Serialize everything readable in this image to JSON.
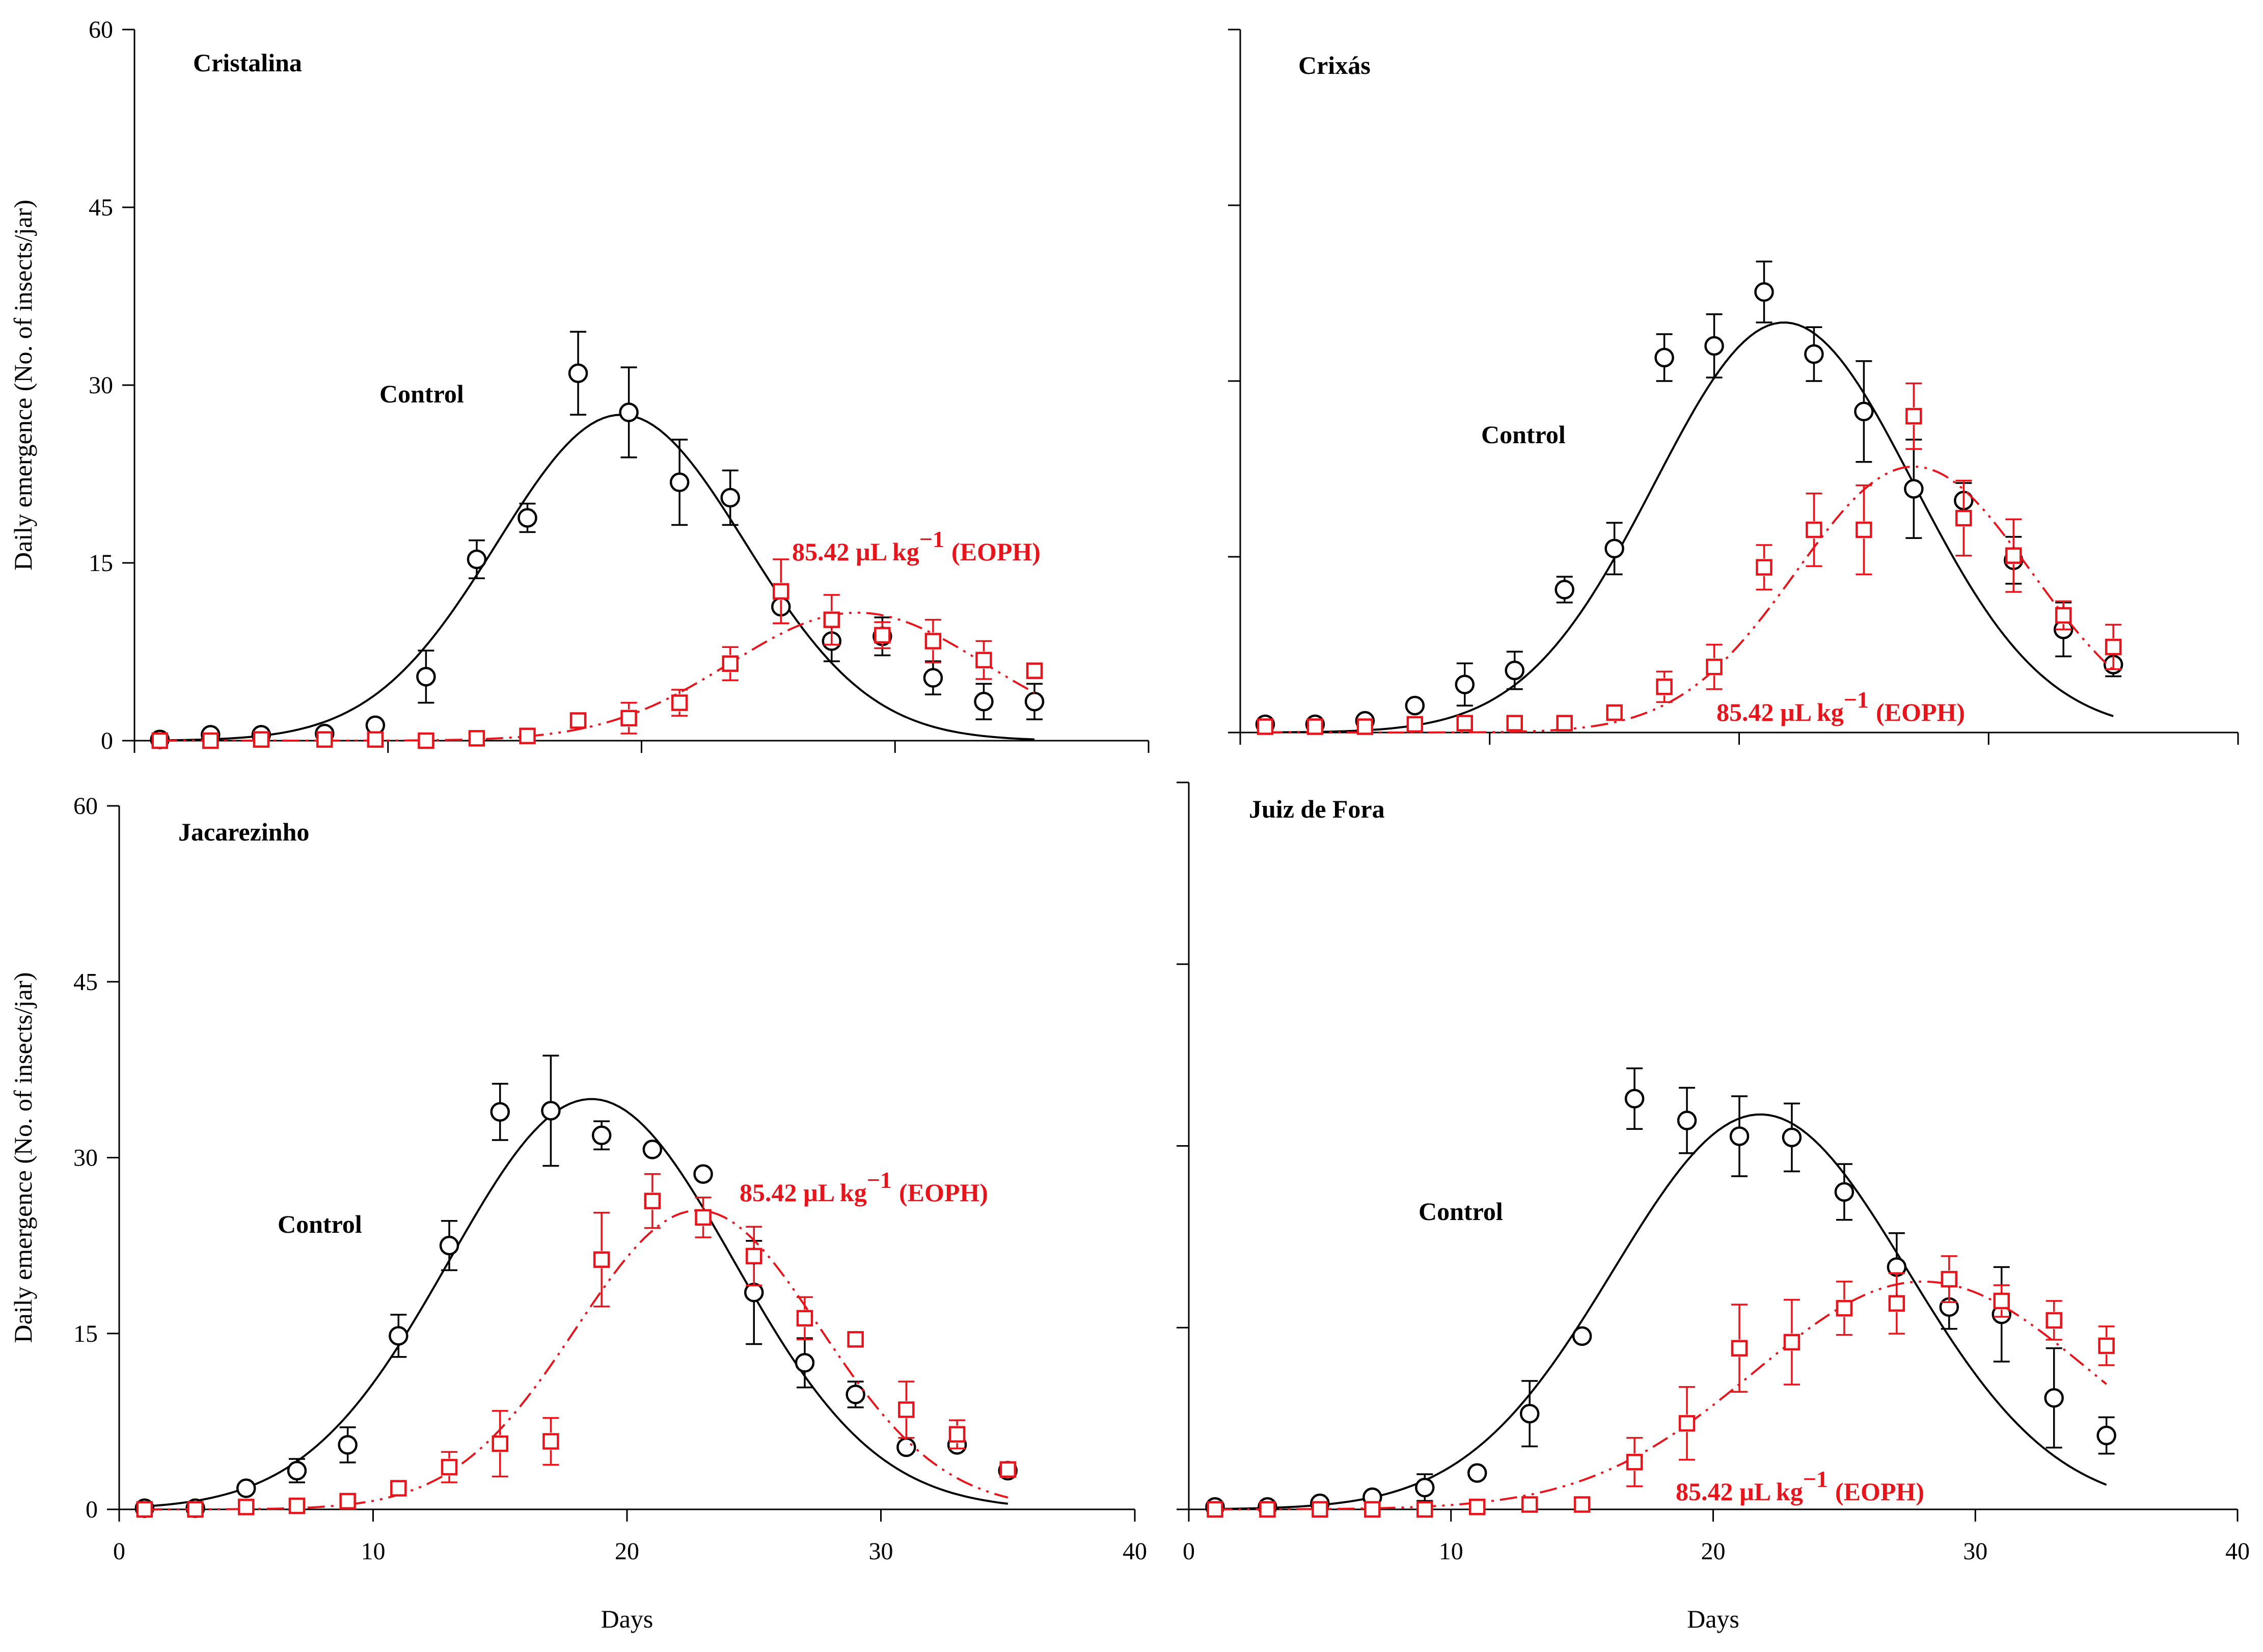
{
  "figure": {
    "xlabel": "Days",
    "ylabel": "Daily emergence (No. of insects/jar)",
    "colors": {
      "control": "#000000",
      "treated": "#e8141c"
    }
  },
  "chart_data": [
    {
      "type": "scatter",
      "title": "Cristalina",
      "xlim": [
        0,
        40
      ],
      "ylim": [
        0,
        60
      ],
      "xticks": [
        0,
        10,
        20,
        30,
        40
      ],
      "yticks": [
        0,
        15,
        30,
        45,
        60
      ],
      "series": [
        {
          "name": "Control",
          "label": "Control",
          "marker": "circle",
          "line": "solid",
          "x": [
            1.0,
            3.0,
            5.0,
            7.5,
            9.5,
            11.5,
            13.5,
            15.5,
            17.5,
            19.5,
            21.5,
            23.5,
            25.5,
            27.5,
            29.5,
            31.5,
            33.5,
            35.5
          ],
          "y": [
            0.1,
            0.5,
            0.5,
            0.6,
            1.3,
            5.4,
            15.3,
            18.8,
            31.0,
            27.7,
            21.8,
            20.5,
            11.3,
            8.4,
            8.8,
            5.3,
            3.3,
            3.3
          ],
          "err": [
            0.1,
            0.3,
            0.3,
            0.3,
            0.4,
            2.2,
            1.6,
            1.2,
            3.5,
            3.8,
            3.6,
            2.3,
            1.4,
            1.7,
            1.6,
            1.4,
            1.5,
            1.5
          ],
          "fit": {
            "a": 27.5,
            "mu": 19.2,
            "sigma": 4.9,
            "x0": 1.0,
            "x1": 35.5
          }
        },
        {
          "name": "EOPH",
          "label": "85.42 µL kg",
          "sup": "−1",
          "suffix": "(EOPH)",
          "marker": "square",
          "line": "dashdot",
          "x": [
            1.0,
            3.0,
            5.0,
            7.5,
            9.5,
            11.5,
            13.5,
            15.5,
            17.5,
            19.5,
            21.5,
            23.5,
            25.5,
            27.5,
            29.5,
            31.5,
            33.5,
            35.5
          ],
          "y": [
            0.0,
            0.0,
            0.1,
            0.1,
            0.1,
            0.0,
            0.2,
            0.4,
            1.7,
            1.9,
            3.2,
            6.5,
            12.6,
            10.2,
            8.9,
            8.4,
            6.8,
            5.9
          ],
          "err": [
            0.1,
            0.1,
            0.1,
            0.1,
            0.1,
            0.1,
            0.2,
            0.3,
            0.6,
            1.3,
            1.1,
            1.4,
            2.7,
            2.1,
            1.1,
            1.8,
            1.6,
            0.6
          ],
          "fit": {
            "a": 10.8,
            "mu": 28.5,
            "sigma": 5.0,
            "x0": 1.0,
            "x1": 35.5
          }
        }
      ]
    },
    {
      "type": "scatter",
      "title": "Crixás",
      "xlim": [
        0,
        40
      ],
      "ylim": [
        0,
        60
      ],
      "xticks": [
        0,
        10,
        20,
        30,
        40
      ],
      "yticks": [
        0,
        15,
        30,
        45,
        60
      ],
      "series": [
        {
          "name": "Control",
          "label": "Control",
          "marker": "circle",
          "line": "solid",
          "x": [
            1.0,
            3.0,
            5.0,
            7.0,
            9.0,
            11.0,
            13.0,
            15.0,
            17.0,
            19.0,
            21.0,
            23.0,
            25.0,
            27.0,
            29.0,
            31.0,
            33.0,
            35.0
          ],
          "y": [
            0.7,
            0.7,
            1.0,
            2.3,
            4.1,
            5.3,
            12.2,
            15.7,
            32.0,
            33.0,
            37.6,
            32.3,
            27.4,
            20.8,
            19.8,
            14.7,
            8.8,
            5.8
          ],
          "err": [
            0.3,
            0.3,
            0.4,
            0.8,
            1.8,
            1.6,
            1.1,
            2.2,
            2.0,
            2.7,
            2.6,
            2.3,
            4.3,
            4.2,
            1.5,
            2.0,
            2.3,
            1.0
          ],
          "fit": {
            "a": 35.0,
            "mu": 21.8,
            "sigma": 5.2,
            "x0": 1.0,
            "x1": 35.0
          }
        },
        {
          "name": "EOPH",
          "label": "85.42 µL kg",
          "sup": "−1",
          "suffix": "(EOPH)",
          "marker": "square",
          "line": "dashdot",
          "x": [
            1.0,
            3.0,
            5.0,
            7.0,
            9.0,
            11.0,
            13.0,
            15.0,
            17.0,
            19.0,
            21.0,
            23.0,
            25.0,
            27.0,
            29.0,
            31.0,
            33.0,
            35.0
          ],
          "y": [
            0.5,
            0.5,
            0.5,
            0.7,
            0.8,
            0.8,
            0.8,
            1.7,
            3.9,
            5.6,
            14.1,
            17.3,
            17.3,
            27.0,
            18.3,
            15.1,
            10.0,
            7.3
          ],
          "err": [
            0.2,
            0.2,
            0.2,
            0.3,
            0.3,
            0.3,
            0.3,
            0.7,
            1.3,
            1.9,
            1.9,
            3.1,
            3.8,
            2.8,
            3.2,
            3.1,
            1.2,
            1.9
          ],
          "fit": {
            "a": 22.7,
            "mu": 27.0,
            "sigma": 4.7,
            "x0": 1.0,
            "x1": 35.0
          }
        }
      ]
    },
    {
      "type": "scatter",
      "title": "Jacarezinho",
      "xlim": [
        0,
        40
      ],
      "ylim": [
        0,
        60
      ],
      "xticks": [
        0,
        10,
        20,
        30,
        40
      ],
      "yticks": [
        0,
        15,
        30,
        45,
        60
      ],
      "series": [
        {
          "name": "Control",
          "label": "Control",
          "marker": "circle",
          "line": "solid",
          "x": [
            1,
            3,
            5,
            7,
            9,
            11,
            13,
            15,
            17,
            19,
            21,
            23,
            25,
            27,
            29,
            31,
            33,
            35
          ],
          "y": [
            0.1,
            0.1,
            1.8,
            3.3,
            5.5,
            14.8,
            22.5,
            33.9,
            34.0,
            31.9,
            30.7,
            28.6,
            18.5,
            12.5,
            9.8,
            5.3,
            5.5,
            3.3
          ],
          "err": [
            0.1,
            0.1,
            0.3,
            1.0,
            1.5,
            1.8,
            2.1,
            2.4,
            4.7,
            1.2,
            0.6,
            0.6,
            4.4,
            2.1,
            1.1,
            0.6,
            0.6,
            0.6
          ],
          "fit": {
            "a": 35.0,
            "mu": 18.6,
            "sigma": 5.6,
            "x0": 1.0,
            "x1": 35.0
          }
        },
        {
          "name": "EOPH",
          "label": "85.42 µL kg",
          "sup": "−1",
          "suffix": "(EOPH)",
          "marker": "square",
          "line": "dashdot",
          "x": [
            1,
            3,
            5,
            7,
            9,
            11,
            13,
            15,
            17,
            19,
            21,
            23,
            25,
            27,
            29,
            31,
            33,
            35
          ],
          "y": [
            0.0,
            0.0,
            0.2,
            0.3,
            0.7,
            1.8,
            3.6,
            5.6,
            5.8,
            21.3,
            26.3,
            24.9,
            21.6,
            16.3,
            14.5,
            8.5,
            6.4,
            3.4
          ],
          "err": [
            0.1,
            0.1,
            0.2,
            0.2,
            0.4,
            0.6,
            1.3,
            2.8,
            2.0,
            4.0,
            2.3,
            1.7,
            2.5,
            1.8,
            0.5,
            2.4,
            1.2,
            0.8
          ],
          "fit": {
            "a": 25.5,
            "mu": 22.8,
            "sigma": 4.8,
            "x0": 1.0,
            "x1": 35.0
          }
        }
      ]
    },
    {
      "type": "scatter",
      "title": "Juiz de Fora",
      "xlim": [
        0,
        40
      ],
      "ylim": [
        0,
        60
      ],
      "xticks": [
        0,
        10,
        20,
        30,
        40
      ],
      "yticks": [
        0,
        15,
        30,
        45,
        60
      ],
      "series": [
        {
          "name": "Control",
          "label": "Control",
          "marker": "circle",
          "line": "solid",
          "x": [
            1,
            3,
            5,
            7,
            9,
            11,
            13,
            15,
            17,
            19,
            21,
            23,
            25,
            27,
            29,
            31,
            33,
            35
          ],
          "y": [
            0.2,
            0.2,
            0.5,
            1.0,
            1.8,
            3.0,
            7.9,
            14.3,
            33.9,
            32.1,
            30.8,
            30.7,
            26.2,
            20.0,
            16.7,
            16.1,
            9.2,
            6.1
          ],
          "err": [
            0.1,
            0.1,
            0.2,
            0.6,
            1.1,
            0.7,
            2.7,
            0.6,
            2.5,
            2.7,
            3.3,
            2.8,
            2.3,
            2.8,
            1.8,
            3.9,
            4.1,
            1.5
          ],
          "fit": {
            "a": 32.6,
            "mu": 21.8,
            "sigma": 5.6,
            "x0": 1.0,
            "x1": 35.0
          }
        },
        {
          "name": "EOPH",
          "label": "85.42 µL kg",
          "sup": "−1",
          "suffix": "(EOPH)",
          "marker": "square",
          "line": "dashdot",
          "x": [
            1,
            3,
            5,
            7,
            9,
            11,
            13,
            15,
            17,
            19,
            21,
            23,
            25,
            27,
            29,
            31,
            33,
            35
          ],
          "y": [
            0.0,
            0.0,
            0.0,
            0.0,
            0.0,
            0.2,
            0.4,
            0.4,
            3.9,
            7.1,
            13.3,
            13.8,
            16.6,
            17.0,
            19.0,
            17.2,
            15.6,
            13.5
          ],
          "err": [
            0.1,
            0.1,
            0.1,
            0.1,
            0.1,
            0.1,
            0.2,
            0.2,
            2.0,
            3.0,
            3.6,
            3.5,
            2.2,
            2.5,
            1.9,
            1.3,
            1.6,
            1.6
          ],
          "fit": {
            "a": 18.8,
            "mu": 28.0,
            "sigma": 6.4,
            "x0": 1.0,
            "x1": 35.0
          }
        }
      ]
    }
  ]
}
